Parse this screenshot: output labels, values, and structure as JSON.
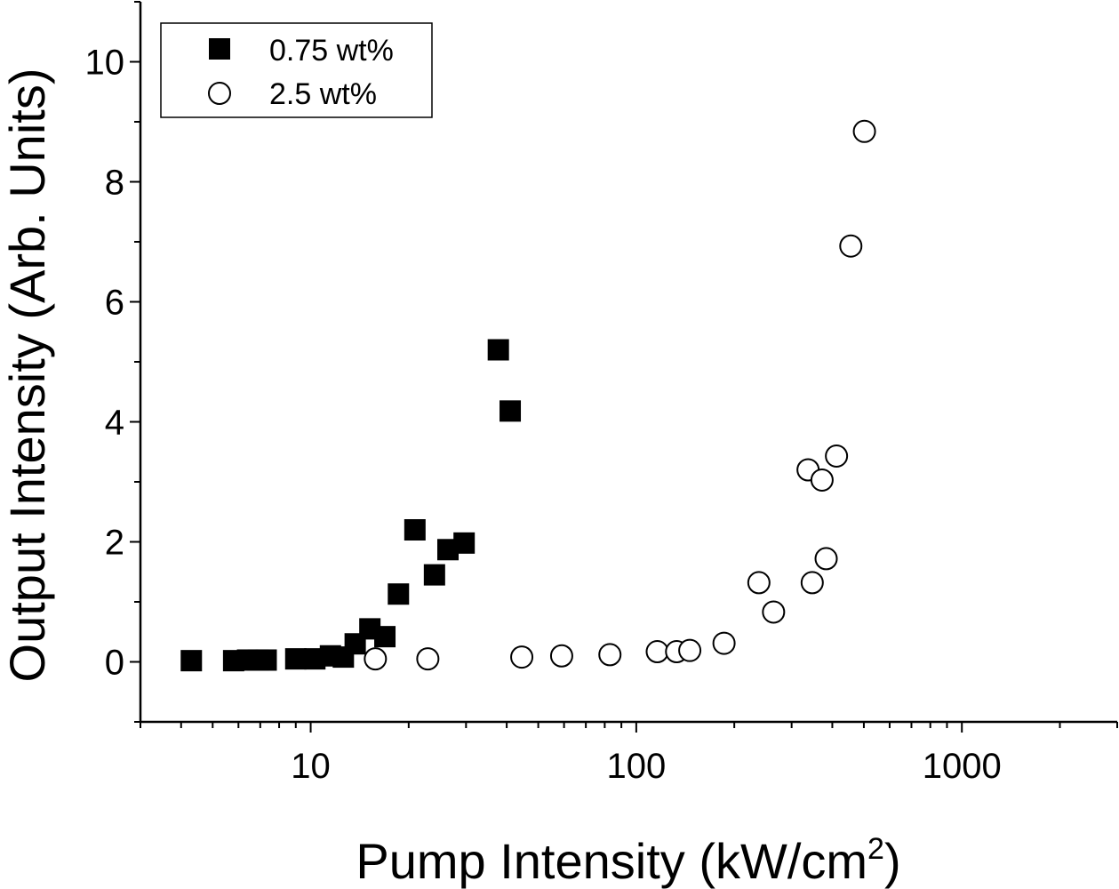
{
  "chart_data": {
    "type": "scatter",
    "title": "",
    "xlabel": "Pump Intensity (kW/cm",
    "xlabel_superscript": "2",
    "xlabel_suffix": ")",
    "ylabel": "Output Intensity (Arb. Units)",
    "xscale": "log",
    "xlim": [
      3,
      3000
    ],
    "ylim": [
      -1,
      11
    ],
    "x_ticks": [
      10,
      100,
      1000
    ],
    "x_tick_labels": [
      "10",
      "100",
      "1000"
    ],
    "y_ticks": [
      0,
      2,
      4,
      6,
      8,
      10
    ],
    "y_tick_labels": [
      "0",
      "2",
      "4",
      "6",
      "8",
      "10"
    ],
    "legend_position": "top-left",
    "series": [
      {
        "name": "0.75 wt%",
        "marker": "filled-square",
        "color": "#000000",
        "points": [
          {
            "x": 4.3,
            "y": 0.02
          },
          {
            "x": 5.8,
            "y": 0.02
          },
          {
            "x": 6.4,
            "y": 0.03
          },
          {
            "x": 6.9,
            "y": 0.03
          },
          {
            "x": 7.3,
            "y": 0.03
          },
          {
            "x": 9.0,
            "y": 0.05
          },
          {
            "x": 10.3,
            "y": 0.05
          },
          {
            "x": 11.5,
            "y": 0.1
          },
          {
            "x": 12.6,
            "y": 0.08
          },
          {
            "x": 13.7,
            "y": 0.3
          },
          {
            "x": 15.2,
            "y": 0.55
          },
          {
            "x": 16.9,
            "y": 0.42
          },
          {
            "x": 18.6,
            "y": 1.13
          },
          {
            "x": 20.9,
            "y": 2.2
          },
          {
            "x": 24.0,
            "y": 1.45
          },
          {
            "x": 26.4,
            "y": 1.87
          },
          {
            "x": 29.6,
            "y": 1.98
          },
          {
            "x": 37.7,
            "y": 5.2
          },
          {
            "x": 41.0,
            "y": 4.18
          }
        ]
      },
      {
        "name": "2.5 wt%",
        "marker": "open-circle",
        "color": "#000000",
        "points": [
          {
            "x": 15.8,
            "y": 0.05
          },
          {
            "x": 22.9,
            "y": 0.05
          },
          {
            "x": 44.5,
            "y": 0.08
          },
          {
            "x": 59.0,
            "y": 0.1
          },
          {
            "x": 83.0,
            "y": 0.12
          },
          {
            "x": 116.0,
            "y": 0.17
          },
          {
            "x": 133.0,
            "y": 0.17
          },
          {
            "x": 146.0,
            "y": 0.19
          },
          {
            "x": 186.0,
            "y": 0.31
          },
          {
            "x": 238.0,
            "y": 1.32
          },
          {
            "x": 264.0,
            "y": 0.83
          },
          {
            "x": 337.0,
            "y": 3.2
          },
          {
            "x": 347.0,
            "y": 1.32
          },
          {
            "x": 372.0,
            "y": 3.03
          },
          {
            "x": 383.0,
            "y": 1.72
          },
          {
            "x": 412.0,
            "y": 3.43
          },
          {
            "x": 456.0,
            "y": 6.93
          },
          {
            "x": 502.0,
            "y": 8.84
          }
        ]
      }
    ]
  }
}
